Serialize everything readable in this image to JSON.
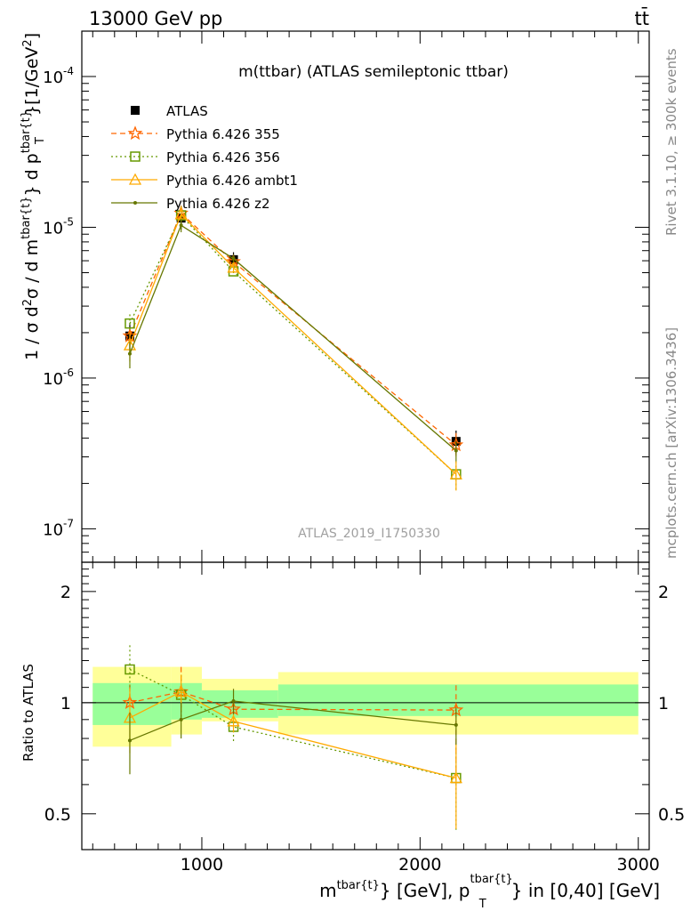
{
  "header": {
    "left": "13000 GeV pp",
    "right": "tt̄"
  },
  "side_labels": {
    "rivet": "Rivet 3.1.10, ≥ 300k events",
    "mcplots": "mcplots.cern.ch [arXiv:1306.3436]"
  },
  "chart_data": [
    {
      "panel": "main",
      "type": "scatter",
      "title": "m(ttbar) (ATLAS semileptonic ttbar)",
      "watermark": "ATLAS_2019_I1750330",
      "ylabel": "1 / σ d²σ / d m^{tbar{t}} d p_T^{tbar{t}} [1/GeV²]",
      "y_scale": "log",
      "ylim": [
        6e-08,
        0.0002
      ],
      "xlim": [
        450,
        3050
      ],
      "y_tick_labels": [
        "10^{-7}",
        "10^{-6}",
        "10^{-5}",
        "10^{-4}"
      ],
      "legend_position": "top-left",
      "x_bins": [
        {
          "low": 450,
          "high": 820
        },
        {
          "low": 820,
          "high": 1000
        },
        {
          "low": 1000,
          "high": 1300
        },
        {
          "low": 1300,
          "high": 3000
        }
      ],
      "series": [
        {
          "name": "ATLAS",
          "color": "#000000",
          "style": "data",
          "x": [
            670,
            905,
            1145,
            2165
          ],
          "y": [
            1.9e-06,
            1.15e-05,
            6.1e-06,
            3.8e-07
          ],
          "err_rel": [
            0.22,
            0.16,
            0.12,
            0.18
          ]
        },
        {
          "name": "Pythia 6.426 355",
          "color": "#ff6600",
          "style": "dash",
          "marker": "star",
          "x": [
            670,
            905,
            1145,
            2165
          ],
          "y": [
            1.9e-06,
            1.24e-05,
            5.9e-06,
            3.6e-07
          ],
          "err_rel": [
            0.12,
            0.12,
            0.07,
            0.2
          ]
        },
        {
          "name": "Pythia 6.426 356",
          "color": "#669900",
          "style": "dot",
          "marker": "square",
          "x": [
            670,
            905,
            1145,
            2165
          ],
          "y": [
            2.3e-06,
            1.2e-05,
            5.1e-06,
            2.3e-07
          ],
          "err_rel": [
            0.15,
            0.15,
            0.07,
            0.22
          ]
        },
        {
          "name": "Pythia 6.426 ambt1",
          "color": "#ffaa00",
          "style": "solid",
          "marker": "triangle",
          "x": [
            670,
            905,
            1145,
            2165
          ],
          "y": [
            1.65e-06,
            1.22e-05,
            5.4e-06,
            2.3e-07
          ],
          "err_rel": [
            0.22,
            0.12,
            0.07,
            0.22
          ]
        },
        {
          "name": "Pythia 6.426 z2",
          "color": "#667700",
          "style": "solid",
          "marker": "dot",
          "x": [
            670,
            905,
            1145,
            2165
          ],
          "y": [
            1.45e-06,
            1.03e-05,
            6.2e-06,
            3.3e-07
          ],
          "err_rel": [
            0.2,
            0.1,
            0.06,
            0.15
          ]
        }
      ]
    },
    {
      "panel": "ratio",
      "type": "scatter",
      "ylabel": "Ratio to ATLAS",
      "xlabel": "m^{tbar{t}} [GeV], p_T^{tbar{t}} in [0,40] [GeV]",
      "y_scale": "log",
      "ylim": [
        0.4,
        2.4
      ],
      "xlim": [
        450,
        3050
      ],
      "y_ticks": [
        0.5,
        1,
        2
      ],
      "y_tick_labels": [
        "0.5",
        "1",
        "2"
      ],
      "x_ticks": [
        1000,
        2000,
        3000
      ],
      "x_tick_labels": [
        "1000",
        "2000",
        "3000"
      ],
      "bands": {
        "inner_color": "#99ff99",
        "outer_color": "#ffff99",
        "bins": [
          {
            "low": 500,
            "high": 860,
            "inner": [
              0.87,
              1.13
            ],
            "outer": [
              0.76,
              1.25
            ]
          },
          {
            "low": 860,
            "high": 1000,
            "inner": [
              0.9,
              1.13
            ],
            "outer": [
              0.82,
              1.25
            ]
          },
          {
            "low": 1000,
            "high": 1350,
            "inner": [
              0.91,
              1.08
            ],
            "outer": [
              0.89,
              1.16
            ]
          },
          {
            "low": 1350,
            "high": 3000,
            "inner": [
              0.92,
              1.12
            ],
            "outer": [
              0.82,
              1.21
            ]
          }
        ]
      },
      "series": [
        {
          "name": "Pythia 6.426 355",
          "color": "#ff6600",
          "style": "dash",
          "marker": "star",
          "x": [
            670,
            905,
            1145,
            2165
          ],
          "y": [
            1.0,
            1.07,
            0.96,
            0.955
          ],
          "err_lo": [
            0.12,
            0.1,
            0.06,
            0.35
          ],
          "err_hi": [
            0.12,
            0.18,
            0.06,
            0.16
          ]
        },
        {
          "name": "Pythia 6.426 356",
          "color": "#669900",
          "style": "dot",
          "marker": "square",
          "x": [
            670,
            905,
            1145,
            2165
          ],
          "y": [
            1.23,
            1.05,
            0.86,
            0.625
          ],
          "err_lo": [
            0.2,
            0.14,
            0.08,
            0.18
          ],
          "err_hi": [
            0.2,
            0.14,
            0.08,
            0.15
          ]
        },
        {
          "name": "Pythia 6.426 ambt1",
          "color": "#ffaa00",
          "style": "solid",
          "marker": "triangle",
          "x": [
            670,
            905,
            1145,
            2165
          ],
          "y": [
            0.91,
            1.07,
            0.89,
            0.625
          ],
          "err_lo": [
            0.18,
            0.12,
            0.06,
            0.17
          ],
          "err_hi": [
            0.18,
            0.12,
            0.06,
            0.15
          ]
        },
        {
          "name": "Pythia 6.426 z2",
          "color": "#667700",
          "style": "solid",
          "marker": "dot",
          "x": [
            670,
            905,
            1145,
            2165
          ],
          "y": [
            0.79,
            0.9,
            1.01,
            0.87
          ],
          "err_lo": [
            0.15,
            0.1,
            0.08,
            0.1
          ],
          "err_hi": [
            0.15,
            0.1,
            0.08,
            0.1
          ]
        }
      ]
    }
  ]
}
